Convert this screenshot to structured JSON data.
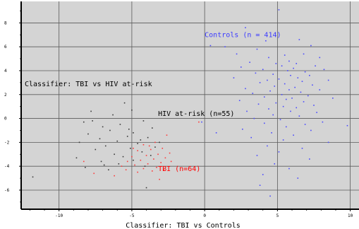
{
  "chart_data": {
    "type": "scatter",
    "title": "",
    "xlabel": "Classifier: TBI vs Controls",
    "ylabel": "Classifier: TBI vs HIV at-risk",
    "xlim": [
      -12.6,
      10.6
    ],
    "ylim": [
      -7.6,
      9.8
    ],
    "xticks": [
      -10,
      -5,
      0,
      5,
      10
    ],
    "yticks": [
      -6,
      -4,
      -2,
      0,
      2,
      4,
      6,
      8
    ],
    "grid": true,
    "background": "#d4d4d4",
    "annotations": [
      {
        "text": "Controls (n = 414)",
        "x": 0.0,
        "y": 6.8,
        "color": "#3b3bff"
      },
      {
        "text": "HIV at-risk (n=55)",
        "x": -3.2,
        "y": 0.2,
        "color": "#000000"
      },
      {
        "text": "TBI (n=64)",
        "x": -3.2,
        "y": -4.4,
        "color": "#ff0000"
      }
    ],
    "series": [
      {
        "label": "Controls (n = 414)",
        "color": "#4a4aff",
        "points": [
          [
            5.1,
            9.1
          ],
          [
            2.8,
            7.6
          ],
          [
            4.2,
            6.5
          ],
          [
            6.5,
            6.6
          ],
          [
            0.4,
            6.1
          ],
          [
            7.3,
            6.1
          ],
          [
            3.6,
            5.8
          ],
          [
            2.2,
            5.4
          ],
          [
            5.5,
            5.3
          ],
          [
            6.8,
            5.4
          ],
          [
            7.9,
            5.1
          ],
          [
            4.4,
            5.1
          ],
          [
            5.8,
            4.8
          ],
          [
            3.1,
            4.7
          ],
          [
            6.3,
            4.6
          ],
          [
            4.9,
            4.6
          ],
          [
            7.6,
            4.4
          ],
          [
            5.3,
            4.4
          ],
          [
            2.5,
            4.3
          ],
          [
            6.1,
            4.2
          ],
          [
            4.0,
            4.1
          ],
          [
            8.2,
            4.1
          ],
          [
            5.7,
            4.0
          ],
          [
            6.9,
            3.9
          ],
          [
            3.5,
            3.8
          ],
          [
            4.7,
            3.7
          ],
          [
            5.9,
            3.6
          ],
          [
            7.2,
            3.6
          ],
          [
            2.0,
            3.4
          ],
          [
            6.4,
            3.4
          ],
          [
            5.1,
            3.3
          ],
          [
            4.3,
            3.2
          ],
          [
            8.5,
            3.2
          ],
          [
            6.7,
            3.1
          ],
          [
            3.8,
            3.0
          ],
          [
            5.5,
            2.9
          ],
          [
            7.4,
            2.8
          ],
          [
            4.8,
            2.7
          ],
          [
            6.2,
            2.6
          ],
          [
            2.8,
            2.5
          ],
          [
            5.8,
            2.4
          ],
          [
            7.9,
            2.4
          ],
          [
            4.5,
            2.3
          ],
          [
            6.6,
            2.2
          ],
          [
            3.3,
            2.1
          ],
          [
            5.3,
            2.0
          ],
          [
            7.1,
            1.9
          ],
          [
            4.1,
            1.8
          ],
          [
            6.0,
            1.7
          ],
          [
            8.8,
            1.7
          ],
          [
            5.6,
            1.6
          ],
          [
            2.4,
            1.5
          ],
          [
            6.8,
            1.4
          ],
          [
            4.9,
            1.3
          ],
          [
            3.7,
            1.2
          ],
          [
            7.5,
            1.1
          ],
          [
            5.4,
            1.0
          ],
          [
            6.3,
            0.9
          ],
          [
            4.4,
            0.8
          ],
          [
            2.9,
            0.6
          ],
          [
            5.9,
            0.6
          ],
          [
            7.7,
            0.5
          ],
          [
            4.7,
            0.3
          ],
          [
            6.5,
            0.2
          ],
          [
            3.4,
            0.0
          ],
          [
            5.2,
            -0.1
          ],
          [
            8.1,
            -0.3
          ],
          [
            4.1,
            -0.4
          ],
          [
            6.9,
            -0.5
          ],
          [
            5.6,
            -0.7
          ],
          [
            2.6,
            -0.9
          ],
          [
            7.3,
            -1.0
          ],
          [
            4.6,
            -1.2
          ],
          [
            6.1,
            -1.4
          ],
          [
            3.2,
            -1.6
          ],
          [
            5.4,
            -1.8
          ],
          [
            8.5,
            -2.0
          ],
          [
            4.3,
            -2.3
          ],
          [
            6.7,
            -2.5
          ],
          [
            5.1,
            -2.8
          ],
          [
            3.6,
            -3.1
          ],
          [
            7.2,
            -3.4
          ],
          [
            4.8,
            -3.8
          ],
          [
            5.8,
            -4.2
          ],
          [
            4.0,
            -4.7
          ],
          [
            6.4,
            -5.0
          ],
          [
            3.8,
            -5.6
          ],
          [
            4.5,
            -6.5
          ],
          [
            9.8,
            -0.6
          ],
          [
            1.4,
            6.0
          ],
          [
            -0.2,
            -0.3
          ],
          [
            0.8,
            -1.2
          ]
        ]
      },
      {
        "label": "HIV at-risk (n=55)",
        "color": "#3a3a3a",
        "points": [
          [
            -5.5,
            1.3
          ],
          [
            -7.8,
            0.6
          ],
          [
            -5.0,
            0.7
          ],
          [
            -6.3,
            0.3
          ],
          [
            -8.3,
            -0.3
          ],
          [
            -4.2,
            -0.2
          ],
          [
            -5.8,
            -0.5
          ],
          [
            -7.0,
            -0.7
          ],
          [
            -3.6,
            -0.8
          ],
          [
            -6.5,
            -1.0
          ],
          [
            -4.9,
            -1.2
          ],
          [
            -8.0,
            -1.3
          ],
          [
            -5.3,
            -1.5
          ],
          [
            -7.2,
            -1.7
          ],
          [
            -3.9,
            -1.6
          ],
          [
            -6.0,
            -1.9
          ],
          [
            -8.6,
            -2.0
          ],
          [
            -4.6,
            -2.1
          ],
          [
            -6.8,
            -2.3
          ],
          [
            -5.1,
            -2.5
          ],
          [
            -3.4,
            -2.4
          ],
          [
            -7.5,
            -2.6
          ],
          [
            -4.3,
            -2.8
          ],
          [
            -6.2,
            -3.0
          ],
          [
            -5.6,
            -3.2
          ],
          [
            -8.8,
            -3.3
          ],
          [
            -3.7,
            -3.1
          ],
          [
            -4.9,
            -3.5
          ],
          [
            -7.1,
            -3.6
          ],
          [
            -5.9,
            -3.8
          ],
          [
            -4.1,
            -4.0
          ],
          [
            -8.2,
            -4.1
          ],
          [
            -6.6,
            -4.3
          ],
          [
            -4.4,
            -1.8
          ],
          [
            -5.2,
            -0.9
          ],
          [
            -6.9,
            -3.9
          ],
          [
            -11.8,
            -4.9
          ],
          [
            -3.1,
            -2.0
          ],
          [
            -4.0,
            -5.8
          ],
          [
            -7.7,
            -0.2
          ]
        ]
      },
      {
        "label": "TBI (n=64)",
        "color": "#ff3b3b",
        "points": [
          [
            -2.6,
            -1.4
          ],
          [
            -3.4,
            -2.0
          ],
          [
            -4.2,
            -2.2
          ],
          [
            -2.9,
            -2.5
          ],
          [
            -3.7,
            -2.6
          ],
          [
            -4.6,
            -2.7
          ],
          [
            -2.4,
            -2.9
          ],
          [
            -3.2,
            -3.0
          ],
          [
            -4.0,
            -3.1
          ],
          [
            -5.0,
            -3.2
          ],
          [
            -2.7,
            -3.3
          ],
          [
            -3.5,
            -3.4
          ],
          [
            -4.4,
            -3.5
          ],
          [
            -5.3,
            -3.6
          ],
          [
            -3.0,
            -3.7
          ],
          [
            -3.9,
            -3.8
          ],
          [
            -4.8,
            -3.9
          ],
          [
            -5.7,
            -4.0
          ],
          [
            -3.3,
            -4.1
          ],
          [
            -4.2,
            -4.2
          ],
          [
            -2.8,
            -4.3
          ],
          [
            -3.6,
            -4.4
          ],
          [
            -4.6,
            -4.5
          ],
          [
            -7.6,
            -4.6
          ],
          [
            -3.1,
            -5.1
          ],
          [
            -6.2,
            -4.8
          ],
          [
            -2.3,
            -3.6
          ],
          [
            -4.9,
            -2.5
          ],
          [
            -3.8,
            -2.3
          ],
          [
            -5.4,
            -4.3
          ],
          [
            -0.4,
            -0.3
          ],
          [
            -8.3,
            -3.6
          ]
        ]
      }
    ]
  }
}
